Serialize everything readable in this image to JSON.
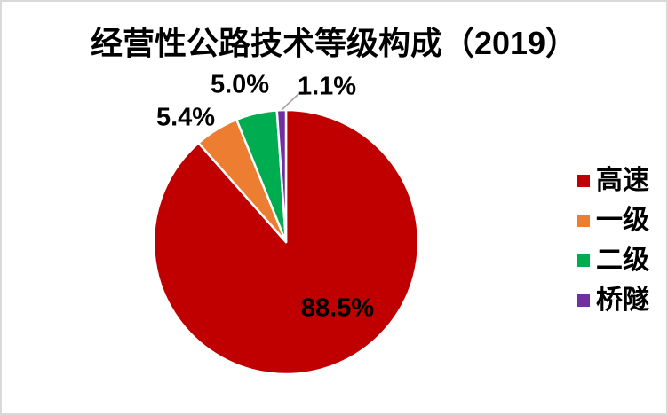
{
  "chart_data": {
    "type": "pie",
    "title": "经营性公路技术等级构成（2019）",
    "unit": "%",
    "start_angle_deg": 0,
    "direction": "clockwise",
    "legend_position": "right",
    "background_color": "#ffffff",
    "border_color": "#d9d9d9",
    "leader_line_color": "#a6a6a6",
    "slices": [
      {
        "name": "高速",
        "value": 88.5,
        "label": "88.5%",
        "color": "#c00000"
      },
      {
        "name": "一级",
        "value": 5.4,
        "label": "5.4%",
        "color": "#ed7d31"
      },
      {
        "name": "二级",
        "value": 5.0,
        "label": "5.0%",
        "color": "#00ac50"
      },
      {
        "name": "桥隧",
        "value": 1.1,
        "label": "1.1%",
        "color": "#7030a0"
      }
    ]
  }
}
